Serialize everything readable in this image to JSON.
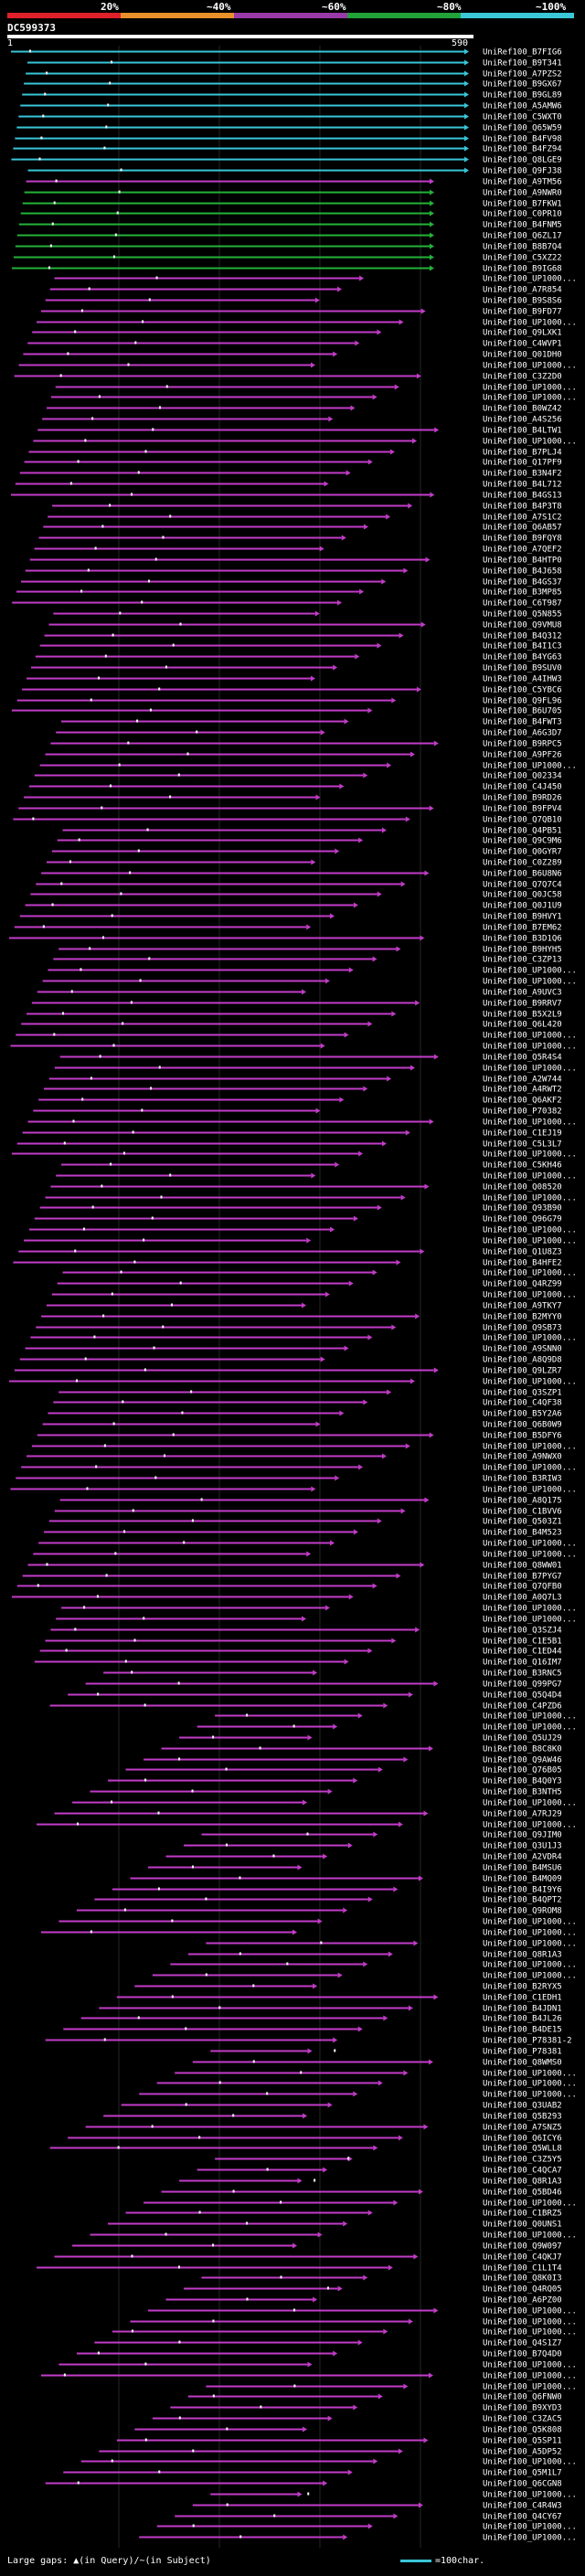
{
  "legend": {
    "labels": [
      "20%",
      "~40%",
      "~60%",
      "~80%",
      "~100%"
    ],
    "colors": [
      "#e0202a",
      "#e8902a",
      "#9a3aa8",
      "#23a23a",
      "#3ac8d8"
    ]
  },
  "query": {
    "name": "DC599373",
    "start": "1",
    "end": "590"
  },
  "hit_colors": {
    "cyan": "#38c6d8",
    "green": "#23b238",
    "magenta": "#c23cc8"
  },
  "hits": [
    {
      "name": "UniRef100_B7FIG6",
      "color": "cyan"
    },
    {
      "name": "UniRef100_B9T341",
      "color": "cyan"
    },
    {
      "name": "UniRef100_A7PZS2",
      "color": "cyan"
    },
    {
      "name": "UniRef100_B9GX67",
      "color": "cyan"
    },
    {
      "name": "UniRef100_B9GL89",
      "color": "cyan"
    },
    {
      "name": "UniRef100_A5AMW6",
      "color": "cyan"
    },
    {
      "name": "UniRef100_C5WXT0",
      "color": "cyan"
    },
    {
      "name": "UniRef100_Q65W59",
      "color": "cyan"
    },
    {
      "name": "UniRef100_B4FV98",
      "color": "cyan"
    },
    {
      "name": "UniRef100_B4FZ94",
      "color": "cyan"
    },
    {
      "name": "UniRef100_Q8LGE9",
      "color": "cyan"
    },
    {
      "name": "UniRef100_Q9FJ38",
      "color": "cyan"
    },
    {
      "name": "UniRef100_A9TM56",
      "color": "magenta"
    },
    {
      "name": "UniRef100_A9NWR0",
      "color": "green"
    },
    {
      "name": "UniRef100_B7FKW1",
      "color": "green"
    },
    {
      "name": "UniRef100_C0PR10",
      "color": "green"
    },
    {
      "name": "UniRef100_B4FNM5",
      "color": "green"
    },
    {
      "name": "UniRef100_Q6ZL17",
      "color": "green"
    },
    {
      "name": "UniRef100_B8B7Q4",
      "color": "green"
    },
    {
      "name": "UniRef100_C5XZ22",
      "color": "green"
    },
    {
      "name": "UniRef100_B9IG68",
      "color": "green"
    },
    {
      "name": "UniRef100_UP1000...",
      "color": "magenta"
    },
    {
      "name": "UniRef100_A7R854",
      "color": "magenta"
    },
    {
      "name": "UniRef100_B9S8S6",
      "color": "magenta"
    },
    {
      "name": "UniRef100_B9FD77",
      "color": "magenta"
    },
    {
      "name": "UniRef100_UP1000...",
      "color": "magenta"
    },
    {
      "name": "UniRef100_Q9LXK1",
      "color": "magenta"
    },
    {
      "name": "UniRef100_C4WVP1",
      "color": "magenta"
    },
    {
      "name": "UniRef100_Q01DH0",
      "color": "magenta"
    },
    {
      "name": "UniRef100_UP1000...",
      "color": "magenta"
    },
    {
      "name": "UniRef100_C3Z2D0",
      "color": "magenta"
    },
    {
      "name": "UniRef100_UP1000...",
      "color": "magenta"
    },
    {
      "name": "UniRef100_UP1000...",
      "color": "magenta"
    },
    {
      "name": "UniRef100_B0WZ42",
      "color": "magenta"
    },
    {
      "name": "UniRef100_A4S256",
      "color": "magenta"
    },
    {
      "name": "UniRef100_B4LTW1",
      "color": "magenta"
    },
    {
      "name": "UniRef100_UP1000...",
      "color": "magenta"
    },
    {
      "name": "UniRef100_B7PLJ4",
      "color": "magenta"
    },
    {
      "name": "UniRef100_Q17PF9",
      "color": "magenta"
    },
    {
      "name": "UniRef100_B3N4F2",
      "color": "magenta"
    },
    {
      "name": "UniRef100_B4L712",
      "color": "magenta"
    },
    {
      "name": "UniRef100_B4GS13",
      "color": "magenta"
    },
    {
      "name": "UniRef100_B4P3T8",
      "color": "magenta"
    },
    {
      "name": "UniRef100_A7S1C2",
      "color": "magenta"
    },
    {
      "name": "UniRef100_Q6AB57",
      "color": "magenta"
    },
    {
      "name": "UniRef100_B9FQY8",
      "color": "magenta"
    },
    {
      "name": "UniRef100_A7QEF2",
      "color": "magenta"
    },
    {
      "name": "UniRef100_B4HTP0",
      "color": "magenta"
    },
    {
      "name": "UniRef100_B4J658",
      "color": "magenta"
    },
    {
      "name": "UniRef100_B4GS37",
      "color": "magenta"
    },
    {
      "name": "UniRef100_B3MP85",
      "color": "magenta"
    },
    {
      "name": "UniRef100_C6T987",
      "color": "magenta"
    },
    {
      "name": "UniRef100_Q5N855",
      "color": "magenta"
    },
    {
      "name": "UniRef100_Q9VMU8",
      "color": "magenta"
    },
    {
      "name": "UniRef100_B4Q312",
      "color": "magenta"
    },
    {
      "name": "UniRef100_B4I1C3",
      "color": "magenta"
    },
    {
      "name": "UniRef100_B4YG63",
      "color": "magenta"
    },
    {
      "name": "UniRef100_B9SUV0",
      "color": "magenta"
    },
    {
      "name": "UniRef100_A4IHW3",
      "color": "magenta"
    },
    {
      "name": "UniRef100_C5YBC6",
      "color": "magenta"
    },
    {
      "name": "UniRef100_Q9FL96",
      "color": "magenta"
    },
    {
      "name": "UniRef100_B6U705",
      "color": "magenta"
    },
    {
      "name": "UniRef100_B4FWT3",
      "color": "magenta"
    },
    {
      "name": "UniRef100_A6G3D7",
      "color": "magenta"
    },
    {
      "name": "UniRef100_B9RPC5",
      "color": "magenta"
    },
    {
      "name": "UniRef100_A9PF26",
      "color": "magenta"
    },
    {
      "name": "UniRef100_UP1000...",
      "color": "magenta"
    },
    {
      "name": "UniRef100_Q02334",
      "color": "magenta"
    },
    {
      "name": "UniRef100_C4J450",
      "color": "magenta"
    },
    {
      "name": "UniRef100_B9RD26",
      "color": "magenta"
    },
    {
      "name": "UniRef100_B9FPV4",
      "color": "magenta"
    },
    {
      "name": "UniRef100_Q7QB10",
      "color": "magenta"
    },
    {
      "name": "UniRef100_Q4PB51",
      "color": "magenta"
    },
    {
      "name": "UniRef100_Q9C9M6",
      "color": "magenta"
    },
    {
      "name": "UniRef100_Q0GYR7",
      "color": "magenta"
    },
    {
      "name": "UniRef100_C0Z289",
      "color": "magenta"
    },
    {
      "name": "UniRef100_B6U8N6",
      "color": "magenta"
    },
    {
      "name": "UniRef100_Q7Q7C4",
      "color": "magenta"
    },
    {
      "name": "UniRef100_Q0JC58",
      "color": "magenta"
    },
    {
      "name": "UniRef100_Q0J1U9",
      "color": "magenta"
    },
    {
      "name": "UniRef100_B9HVY1",
      "color": "magenta"
    },
    {
      "name": "UniRef100_B7EM62",
      "color": "magenta"
    },
    {
      "name": "UniRef100_B3D1Q6",
      "color": "magenta"
    },
    {
      "name": "UniRef100_B9HYH5",
      "color": "magenta"
    },
    {
      "name": "UniRef100_C3ZP13",
      "color": "magenta"
    },
    {
      "name": "UniRef100_UP1000...",
      "color": "magenta"
    },
    {
      "name": "UniRef100_UP1000...",
      "color": "magenta"
    },
    {
      "name": "UniRef100_A9UVC3",
      "color": "magenta"
    },
    {
      "name": "UniRef100_B9RRV7",
      "color": "magenta"
    },
    {
      "name": "UniRef100_B5X2L9",
      "color": "magenta"
    },
    {
      "name": "UniRef100_Q6L420",
      "color": "magenta"
    },
    {
      "name": "UniRef100_UP1000...",
      "color": "magenta"
    },
    {
      "name": "UniRef100_UP1000...",
      "color": "magenta"
    },
    {
      "name": "UniRef100_Q5R4S4",
      "color": "magenta"
    },
    {
      "name": "UniRef100_UP1000...",
      "color": "magenta"
    },
    {
      "name": "UniRef100_A2W744",
      "color": "magenta"
    },
    {
      "name": "UniRef100_A4RWT2",
      "color": "magenta"
    },
    {
      "name": "UniRef100_Q6AKF2",
      "color": "magenta"
    },
    {
      "name": "UniRef100_P70382",
      "color": "magenta"
    },
    {
      "name": "UniRef100_UP1000...",
      "color": "magenta"
    },
    {
      "name": "UniRef100_C1EJ19",
      "color": "magenta"
    },
    {
      "name": "UniRef100_C5L3L7",
      "color": "magenta"
    },
    {
      "name": "UniRef100_UP1000...",
      "color": "magenta"
    },
    {
      "name": "UniRef100_C5KH46",
      "color": "magenta"
    },
    {
      "name": "UniRef100_UP1000...",
      "color": "magenta"
    },
    {
      "name": "UniRef100_Q08520",
      "color": "magenta"
    },
    {
      "name": "UniRef100_UP1000...",
      "color": "magenta"
    },
    {
      "name": "UniRef100_Q93B90",
      "color": "magenta"
    },
    {
      "name": "UniRef100_Q96G79",
      "color": "magenta"
    },
    {
      "name": "UniRef100_UP1000...",
      "color": "magenta"
    },
    {
      "name": "UniRef100_UP1000...",
      "color": "magenta"
    },
    {
      "name": "UniRef100_Q1U8Z3",
      "color": "magenta"
    },
    {
      "name": "UniRef100_B4HFE2",
      "color": "magenta"
    },
    {
      "name": "UniRef100_UP1000...",
      "color": "magenta"
    },
    {
      "name": "UniRef100_Q4RZ99",
      "color": "magenta"
    },
    {
      "name": "UniRef100_UP1000...",
      "color": "magenta"
    },
    {
      "name": "UniRef100_A9TKY7",
      "color": "magenta"
    },
    {
      "name": "UniRef100_B2MYY0",
      "color": "magenta"
    },
    {
      "name": "UniRef100_Q9SB73",
      "color": "magenta"
    },
    {
      "name": "UniRef100_UP1000...",
      "color": "magenta"
    },
    {
      "name": "UniRef100_A9SNN0",
      "color": "magenta"
    },
    {
      "name": "UniRef100_A8Q9D8",
      "color": "magenta"
    },
    {
      "name": "UniRef100_Q9LZR7",
      "color": "magenta"
    },
    {
      "name": "UniRef100_UP1000...",
      "color": "magenta"
    },
    {
      "name": "UniRef100_Q3SZP1",
      "color": "magenta"
    },
    {
      "name": "UniRef100_C4QF38",
      "color": "magenta"
    },
    {
      "name": "UniRef100_B5Y2A6",
      "color": "magenta"
    },
    {
      "name": "UniRef100_Q6B0W9",
      "color": "magenta"
    },
    {
      "name": "UniRef100_B5DFY6",
      "color": "magenta"
    },
    {
      "name": "UniRef100_UP1000...",
      "color": "magenta"
    },
    {
      "name": "UniRef100_A9NWX0",
      "color": "magenta"
    },
    {
      "name": "UniRef100_UP1000...",
      "color": "magenta"
    },
    {
      "name": "UniRef100_B3RIW3",
      "color": "magenta"
    },
    {
      "name": "UniRef100_UP1000...",
      "color": "magenta"
    },
    {
      "name": "UniRef100_A8Q175",
      "color": "magenta"
    },
    {
      "name": "UniRef100_C1BVV6",
      "color": "magenta"
    },
    {
      "name": "UniRef100_Q503Z1",
      "color": "magenta"
    },
    {
      "name": "UniRef100_B4M523",
      "color": "magenta"
    },
    {
      "name": "UniRef100_UP1000...",
      "color": "magenta"
    },
    {
      "name": "UniRef100_UP1000...",
      "color": "magenta"
    },
    {
      "name": "UniRef100_Q8WW01",
      "color": "magenta"
    },
    {
      "name": "UniRef100_B7PYG7",
      "color": "magenta"
    },
    {
      "name": "UniRef100_Q7QFB0",
      "color": "magenta"
    },
    {
      "name": "UniRef100_A0Q7L3",
      "color": "magenta"
    },
    {
      "name": "UniRef100_UP1000...",
      "color": "magenta"
    },
    {
      "name": "UniRef100_UP1000...",
      "color": "magenta"
    },
    {
      "name": "UniRef100_Q3SZJ4",
      "color": "magenta"
    },
    {
      "name": "UniRef100_C1E5B1",
      "color": "magenta"
    },
    {
      "name": "UniRef100_C1ED44",
      "color": "magenta"
    },
    {
      "name": "UniRef100_Q16IM7",
      "color": "magenta"
    },
    {
      "name": "UniRef100_B3RNC5",
      "color": "magenta"
    },
    {
      "name": "UniRef100_Q99PG7",
      "color": "magenta"
    },
    {
      "name": "UniRef100_Q5Q4D4",
      "color": "magenta"
    },
    {
      "name": "UniRef100_C4PZD6",
      "color": "magenta"
    },
    {
      "name": "UniRef100_UP1000...",
      "color": "magenta"
    },
    {
      "name": "UniRef100_UP1000...",
      "color": "magenta"
    },
    {
      "name": "UniRef100_Q5UJ29",
      "color": "magenta"
    },
    {
      "name": "UniRef100_B8C8K0",
      "color": "magenta"
    },
    {
      "name": "UniRef100_Q9AW46",
      "color": "magenta"
    },
    {
      "name": "UniRef100_Q76B05",
      "color": "magenta"
    },
    {
      "name": "UniRef100_B4Q0Y3",
      "color": "magenta"
    },
    {
      "name": "UniRef100_B3NTH5",
      "color": "magenta"
    },
    {
      "name": "UniRef100_UP1000...",
      "color": "magenta"
    },
    {
      "name": "UniRef100_A7RJ29",
      "color": "magenta"
    },
    {
      "name": "UniRef100_UP1000...",
      "color": "magenta"
    },
    {
      "name": "UniRef100_Q9JIM0",
      "color": "magenta"
    },
    {
      "name": "UniRef100_Q3U1J3",
      "color": "magenta"
    },
    {
      "name": "UniRef100_A2VDR4",
      "color": "magenta"
    },
    {
      "name": "UniRef100_B4MSU6",
      "color": "magenta"
    },
    {
      "name": "UniRef100_B4MQ09",
      "color": "magenta"
    },
    {
      "name": "UniRef100_B4I9Y6",
      "color": "magenta"
    },
    {
      "name": "UniRef100_B4QPT2",
      "color": "magenta"
    },
    {
      "name": "UniRef100_Q9ROM8",
      "color": "magenta"
    },
    {
      "name": "UniRef100_UP1000...",
      "color": "magenta"
    },
    {
      "name": "UniRef100_UP1000...",
      "color": "magenta"
    },
    {
      "name": "UniRef100_UP1000...",
      "color": "magenta"
    },
    {
      "name": "UniRef100_Q8R1A3",
      "color": "magenta"
    },
    {
      "name": "UniRef100_UP1000...",
      "color": "magenta"
    },
    {
      "name": "UniRef100_UP1000...",
      "color": "magenta"
    },
    {
      "name": "UniRef100_B2RYX5",
      "color": "magenta"
    },
    {
      "name": "UniRef100_C1EDH1",
      "color": "magenta"
    },
    {
      "name": "UniRef100_B4JDN1",
      "color": "magenta"
    },
    {
      "name": "UniRef100_B4JL26",
      "color": "magenta"
    },
    {
      "name": "UniRef100_B4DE15",
      "color": "magenta"
    },
    {
      "name": "UniRef100_P78381-2",
      "color": "magenta"
    },
    {
      "name": "UniRef100_P78381",
      "color": "magenta"
    },
    {
      "name": "UniRef100_Q8WMS0",
      "color": "magenta"
    },
    {
      "name": "UniRef100_UP1000...",
      "color": "magenta"
    },
    {
      "name": "UniRef100_UP1000...",
      "color": "magenta"
    },
    {
      "name": "UniRef100_UP1000...",
      "color": "magenta"
    },
    {
      "name": "UniRef100_Q3UAB2",
      "color": "magenta"
    },
    {
      "name": "UniRef100_Q5B293",
      "color": "magenta"
    },
    {
      "name": "UniRef100_A7SNZ5",
      "color": "magenta"
    },
    {
      "name": "UniRef100_Q6ICY6",
      "color": "magenta"
    },
    {
      "name": "UniRef100_Q5WLL8",
      "color": "magenta"
    },
    {
      "name": "UniRef100_C3Z5Y5",
      "color": "magenta"
    },
    {
      "name": "UniRef100_C4QCA7",
      "color": "magenta"
    },
    {
      "name": "UniRef100_Q8R1A3",
      "color": "magenta"
    },
    {
      "name": "UniRef100_Q5BD46",
      "color": "magenta"
    },
    {
      "name": "UniRef100_UP1000...",
      "color": "magenta"
    },
    {
      "name": "UniRef100_C1BRZ5",
      "color": "magenta"
    },
    {
      "name": "UniRef100_Q0UNS1",
      "color": "magenta"
    },
    {
      "name": "UniRef100_UP1000...",
      "color": "magenta"
    },
    {
      "name": "UniRef100_Q9W097",
      "color": "magenta"
    },
    {
      "name": "UniRef100_C4QKJ7",
      "color": "magenta"
    },
    {
      "name": "UniRef100_C1L1T4",
      "color": "magenta"
    },
    {
      "name": "UniRef100_Q8K0I3",
      "color": "magenta"
    },
    {
      "name": "UniRef100_Q4RQ05",
      "color": "magenta"
    },
    {
      "name": "UniRef100_A6PZ00",
      "color": "magenta"
    },
    {
      "name": "UniRef100_UP1000...",
      "color": "magenta"
    },
    {
      "name": "UniRef100_UP1000...",
      "color": "magenta"
    },
    {
      "name": "UniRef100_UP1000...",
      "color": "magenta"
    },
    {
      "name": "UniRef100_Q4S1Z7",
      "color": "magenta"
    },
    {
      "name": "UniRef100_B7Q4D0",
      "color": "magenta"
    },
    {
      "name": "UniRef100_UP1000...",
      "color": "magenta"
    },
    {
      "name": "UniRef100_UP1000...",
      "color": "magenta"
    },
    {
      "name": "UniRef100_UP1000...",
      "color": "magenta"
    },
    {
      "name": "UniRef100_Q6FNW0",
      "color": "magenta"
    },
    {
      "name": "UniRef100_B9XYD3",
      "color": "magenta"
    },
    {
      "name": "UniRef100_C3ZAC5",
      "color": "magenta"
    },
    {
      "name": "UniRef100_Q5K808",
      "color": "magenta"
    },
    {
      "name": "UniRef100_Q5SP11",
      "color": "magenta"
    },
    {
      "name": "UniRef100_A5DP52",
      "color": "magenta"
    },
    {
      "name": "UniRef100_UP1000...",
      "color": "magenta"
    },
    {
      "name": "UniRef100_Q5M1L7",
      "color": "magenta"
    },
    {
      "name": "UniRef100_Q6CGN8",
      "color": "magenta"
    },
    {
      "name": "UniRef100_UP1000...",
      "color": "magenta"
    },
    {
      "name": "UniRef100_C4R4W3",
      "color": "magenta"
    },
    {
      "name": "UniRef100_Q4CY67",
      "color": "magenta"
    },
    {
      "name": "UniRef100_UP1000...",
      "color": "magenta"
    },
    {
      "name": "UniRef100_UP1000...",
      "color": "magenta"
    }
  ],
  "footer": {
    "text": "Large gaps: ▲(in Query)/~(in Subject)",
    "scale_label": "=100char."
  }
}
